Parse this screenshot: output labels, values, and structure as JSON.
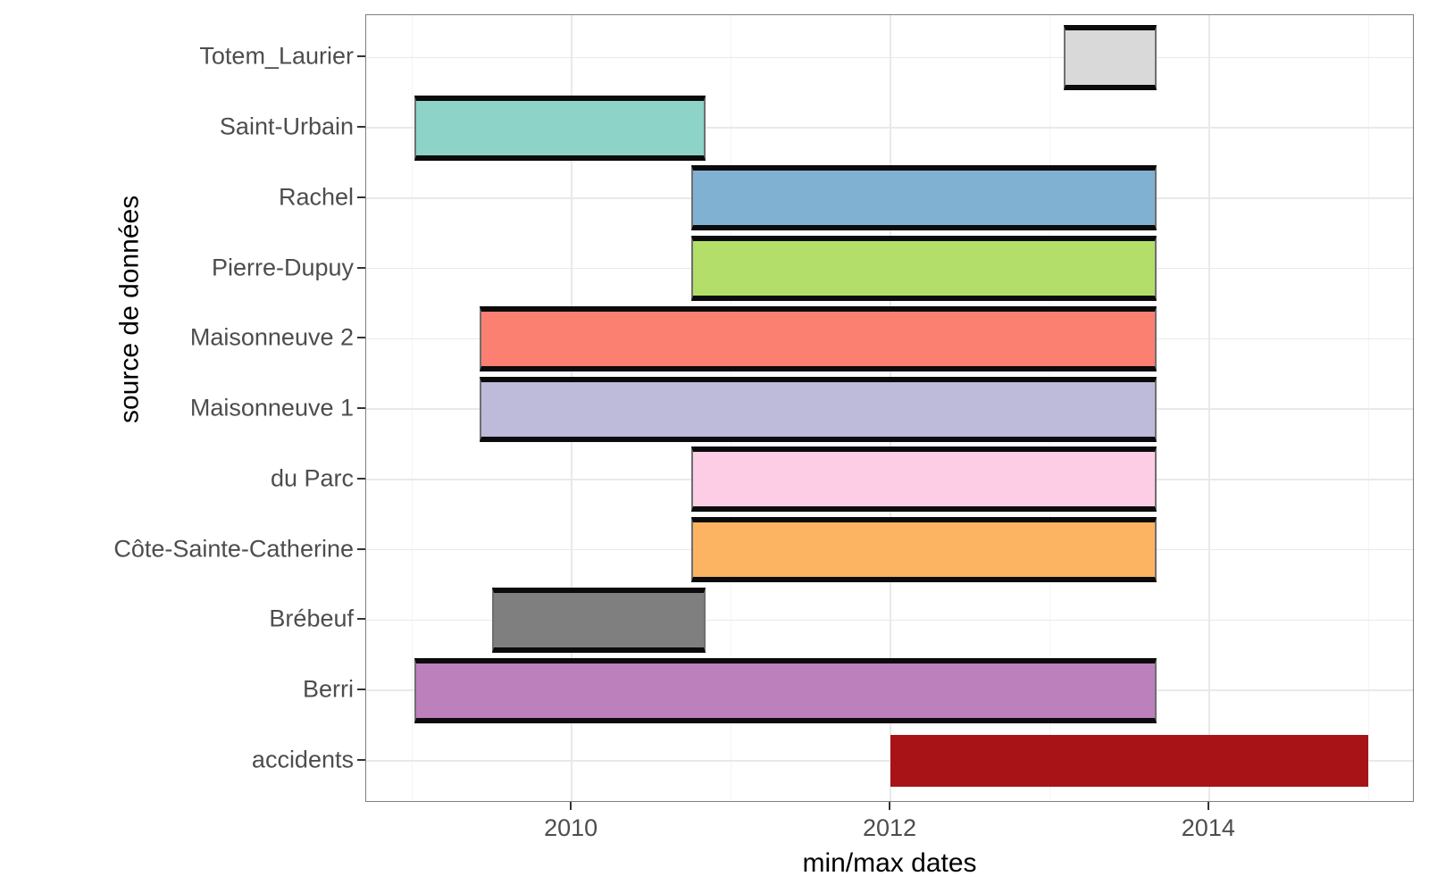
{
  "chart_data": {
    "type": "bar",
    "subtype": "horizontal-date-range",
    "title": "",
    "xlabel": "min/max dates",
    "ylabel": "source de données",
    "x_domain": [
      2008.71,
      2015.29
    ],
    "x_major_ticks": [
      {
        "label": "2010",
        "year": 2010
      },
      {
        "label": "2012",
        "year": 2012
      },
      {
        "label": "2014",
        "year": 2014
      }
    ],
    "x_minor_gridlines": [
      2009,
      2011,
      2013,
      2015
    ],
    "grid": "on",
    "legend": "none",
    "categories_top_to_bottom": [
      "Totem_Laurier",
      "Saint-Urbain",
      "Rachel",
      "Pierre-Dupuy",
      "Maisonneuve 2",
      "Maisonneuve 1",
      "du Parc",
      "Côte-Sainte-Catherine",
      "Brébeuf",
      "Berri",
      "accidents"
    ],
    "bars": [
      {
        "label": "Totem_Laurier",
        "start": 2013.09,
        "end": 2013.67,
        "color": "#D9D9D9",
        "crossbar_outline": true
      },
      {
        "label": "Saint-Urbain",
        "start": 2009.01,
        "end": 2010.84,
        "color": "#8DD3C7",
        "crossbar_outline": true
      },
      {
        "label": "Rachel",
        "start": 2010.75,
        "end": 2013.67,
        "color": "#80B1D3",
        "crossbar_outline": true
      },
      {
        "label": "Pierre-Dupuy",
        "start": 2010.75,
        "end": 2013.67,
        "color": "#B3DE69",
        "crossbar_outline": true
      },
      {
        "label": "Maisonneuve 2",
        "start": 2009.42,
        "end": 2013.67,
        "color": "#FB8072",
        "crossbar_outline": true
      },
      {
        "label": "Maisonneuve 1",
        "start": 2009.42,
        "end": 2013.67,
        "color": "#BEBADA",
        "crossbar_outline": true
      },
      {
        "label": "du Parc",
        "start": 2010.75,
        "end": 2013.67,
        "color": "#FCCDE5",
        "crossbar_outline": true
      },
      {
        "label": "Côte-Sainte-Catherine",
        "start": 2010.75,
        "end": 2013.67,
        "color": "#FDB462",
        "crossbar_outline": true
      },
      {
        "label": "Brébeuf",
        "start": 2009.5,
        "end": 2010.84,
        "color": "#7F7F7F",
        "crossbar_outline": true
      },
      {
        "label": "Berri",
        "start": 2009.01,
        "end": 2013.67,
        "color": "#BC80BD",
        "crossbar_outline": true
      },
      {
        "label": "accidents",
        "start": 2012.0,
        "end": 2015.0,
        "color": "#A81318",
        "crossbar_outline": false
      }
    ],
    "style": {
      "panel_border_color": "#7f7f7f",
      "major_grid_color": "#e9e9e9",
      "minor_grid_color": "#f4f4f4",
      "crossbar_line_color": "#0b0b0b",
      "tick_color": "#333333",
      "axis_text_color": "#4d4d4d",
      "axis_title_color": "#000000"
    }
  }
}
